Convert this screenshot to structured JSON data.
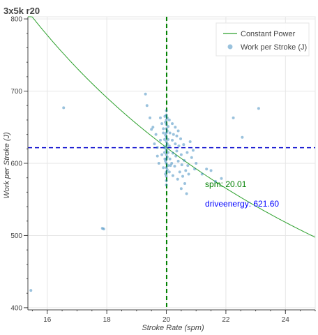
{
  "chart_data": {
    "type": "scatter",
    "title": "3x5k r20",
    "xlabel": "Stroke Rate (spm)",
    "ylabel": "Work per Stroke (J)",
    "xlim": [
      15.35,
      25.0
    ],
    "ylim": [
      397,
      803
    ],
    "x_ticks": [
      16,
      18,
      20,
      22,
      24
    ],
    "y_ticks": [
      400,
      500,
      600,
      700,
      800
    ],
    "grid": true,
    "legend_position": "top-right",
    "legend": [
      {
        "label": "Constant Power",
        "kind": "line",
        "color": "#2ca02c"
      },
      {
        "label": "Work per Stroke (J)",
        "kind": "marker",
        "color": "#1f77b4"
      }
    ],
    "constant_power_curve": {
      "power_product": 12439,
      "color": "#2ca02c"
    },
    "reference_lines": [
      {
        "orientation": "vertical",
        "value": 20.01,
        "color": "#008000",
        "style": "dashed"
      },
      {
        "orientation": "horizontal",
        "value": 621.6,
        "color": "#0000cc",
        "style": "dashed"
      }
    ],
    "annotations": [
      {
        "text": "spm:  20.01",
        "color": "#008000",
        "x": 21.3,
        "y": 567
      },
      {
        "text": "driveenergy: 621.60",
        "color": "#0000ff",
        "x": 21.3,
        "y": 540
      }
    ],
    "series": [
      {
        "name": "Work per Stroke (J)",
        "color": "#1f77b4",
        "points": [
          [
            15.45,
            424
          ],
          [
            16.55,
            677
          ],
          [
            17.85,
            510
          ],
          [
            17.9,
            509
          ],
          [
            19.3,
            696
          ],
          [
            19.35,
            680
          ],
          [
            19.45,
            663
          ],
          [
            19.55,
            650
          ],
          [
            19.6,
            627
          ],
          [
            19.5,
            647
          ],
          [
            19.7,
            610
          ],
          [
            19.65,
            640
          ],
          [
            19.75,
            600
          ],
          [
            19.7,
            622
          ],
          [
            19.8,
            663
          ],
          [
            19.85,
            655
          ],
          [
            19.8,
            632
          ],
          [
            19.9,
            642
          ],
          [
            19.85,
            612
          ],
          [
            19.92,
            622
          ],
          [
            19.95,
            665
          ],
          [
            19.9,
            648
          ],
          [
            19.95,
            606
          ],
          [
            19.9,
            594
          ],
          [
            20.0,
            673
          ],
          [
            20.0,
            667
          ],
          [
            20.0,
            660
          ],
          [
            20.0,
            654
          ],
          [
            20.0,
            648
          ],
          [
            20.0,
            642
          ],
          [
            20.0,
            636
          ],
          [
            20.0,
            630
          ],
          [
            20.0,
            624
          ],
          [
            20.0,
            618
          ],
          [
            20.0,
            612
          ],
          [
            20.0,
            606
          ],
          [
            20.0,
            600
          ],
          [
            20.0,
            594
          ],
          [
            20.0,
            588
          ],
          [
            20.0,
            582
          ],
          [
            20.0,
            576
          ],
          [
            20.0,
            570
          ],
          [
            19.97,
            657
          ],
          [
            19.97,
            639
          ],
          [
            19.97,
            621
          ],
          [
            19.97,
            603
          ],
          [
            19.97,
            585
          ],
          [
            20.03,
            663
          ],
          [
            20.03,
            645
          ],
          [
            20.03,
            627
          ],
          [
            20.03,
            609
          ],
          [
            20.03,
            591
          ],
          [
            20.06,
            651
          ],
          [
            20.06,
            633
          ],
          [
            20.06,
            615
          ],
          [
            20.06,
            597
          ],
          [
            19.94,
            633
          ],
          [
            19.94,
            615
          ],
          [
            20.1,
            660
          ],
          [
            20.12,
            642
          ],
          [
            20.1,
            624
          ],
          [
            20.12,
            606
          ],
          [
            20.1,
            588
          ],
          [
            20.14,
            597
          ],
          [
            20.2,
            655
          ],
          [
            20.2,
            632
          ],
          [
            20.22,
            614
          ],
          [
            20.18,
            600
          ],
          [
            20.24,
            640
          ],
          [
            20.22,
            583
          ],
          [
            20.3,
            650
          ],
          [
            20.3,
            627
          ],
          [
            20.32,
            610
          ],
          [
            20.28,
            596
          ],
          [
            20.35,
            638
          ],
          [
            20.35,
            617
          ],
          [
            20.4,
            645
          ],
          [
            20.42,
            624
          ],
          [
            20.4,
            603
          ],
          [
            20.45,
            588
          ],
          [
            20.38,
            578
          ],
          [
            20.48,
            634
          ],
          [
            20.5,
            612
          ],
          [
            20.52,
            598
          ],
          [
            20.55,
            582
          ],
          [
            20.5,
            565
          ],
          [
            20.58,
            626
          ],
          [
            20.6,
            604
          ],
          [
            20.65,
            590
          ],
          [
            20.62,
            572
          ],
          [
            20.7,
            615
          ],
          [
            20.72,
            597
          ],
          [
            20.75,
            585
          ],
          [
            20.68,
            558
          ],
          [
            20.8,
            630
          ],
          [
            20.85,
            608
          ],
          [
            20.9,
            618
          ],
          [
            20.95,
            592
          ],
          [
            21.0,
            600
          ],
          [
            21.2,
            585
          ],
          [
            21.35,
            592
          ],
          [
            21.5,
            590
          ],
          [
            21.65,
            575
          ],
          [
            21.85,
            579
          ],
          [
            22.25,
            663
          ],
          [
            22.55,
            636
          ],
          [
            23.1,
            676
          ]
        ]
      }
    ]
  }
}
